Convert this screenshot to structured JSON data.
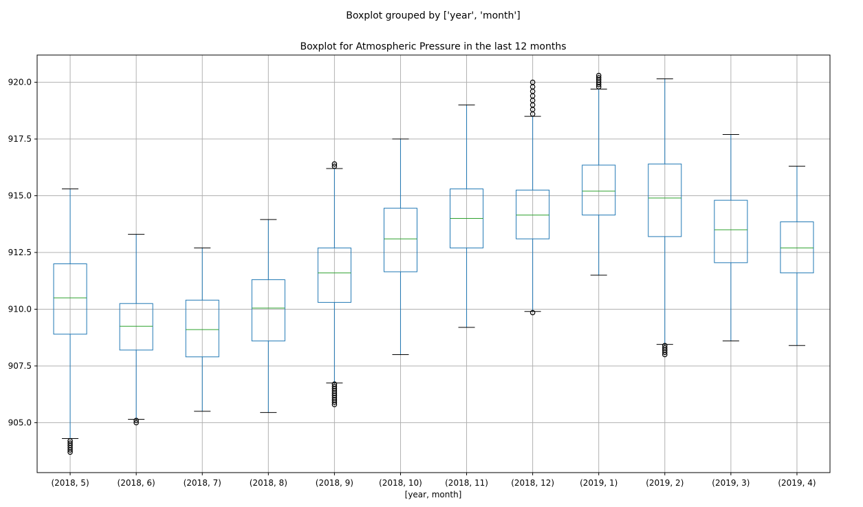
{
  "chart_data": {
    "type": "boxplot",
    "suptitle": "Boxplot grouped by ['year', 'month']",
    "title": "Boxplot for Atmospheric Pressure in the last 12 months",
    "xlabel": "[year, month]",
    "ylabel": "",
    "ylim": [
      902.8,
      921.2
    ],
    "yticks": [
      "905.0",
      "907.5",
      "910.0",
      "912.5",
      "915.0",
      "917.5",
      "920.0"
    ],
    "grid": true,
    "colors": {
      "box": "#1f77b4",
      "median": "#2ca02c",
      "grid": "#b0b0b0",
      "outlier": "#000000"
    },
    "categories": [
      "(2018, 5)",
      "(2018, 6)",
      "(2018, 7)",
      "(2018, 8)",
      "(2018, 9)",
      "(2018, 10)",
      "(2018, 11)",
      "(2018, 12)",
      "(2019, 1)",
      "(2019, 2)",
      "(2019, 3)",
      "(2019, 4)"
    ],
    "boxes": [
      {
        "whisker_low": 904.3,
        "q1": 908.9,
        "median": 910.5,
        "q3": 912.0,
        "whisker_high": 915.3,
        "outliers": [
          904.2,
          904.1,
          904.0,
          903.9,
          903.8,
          903.7
        ]
      },
      {
        "whisker_low": 905.15,
        "q1": 908.2,
        "median": 909.25,
        "q3": 910.25,
        "whisker_high": 913.3,
        "outliers": [
          905.1,
          905.0
        ]
      },
      {
        "whisker_low": 905.5,
        "q1": 907.9,
        "median": 909.1,
        "q3": 910.4,
        "whisker_high": 912.7,
        "outliers": []
      },
      {
        "whisker_low": 905.45,
        "q1": 908.6,
        "median": 910.05,
        "q3": 911.3,
        "whisker_high": 913.95,
        "outliers": []
      },
      {
        "whisker_low": 906.75,
        "q1": 910.3,
        "median": 911.6,
        "q3": 912.7,
        "whisker_high": 916.2,
        "outliers": [
          906.7,
          906.6,
          906.5,
          906.4,
          906.3,
          906.2,
          906.1,
          906.0,
          905.9,
          905.8,
          916.3,
          916.4
        ]
      },
      {
        "whisker_low": 908.0,
        "q1": 911.65,
        "median": 913.1,
        "q3": 914.45,
        "whisker_high": 917.5,
        "outliers": []
      },
      {
        "whisker_low": 909.2,
        "q1": 912.7,
        "median": 914.0,
        "q3": 915.3,
        "whisker_high": 919.0,
        "outliers": []
      },
      {
        "whisker_low": 909.9,
        "q1": 913.1,
        "median": 914.15,
        "q3": 915.25,
        "whisker_high": 918.5,
        "outliers": [
          909.85,
          918.6,
          918.8,
          919.0,
          919.2,
          919.4,
          919.6,
          919.8,
          920.0
        ]
      },
      {
        "whisker_low": 911.5,
        "q1": 914.15,
        "median": 915.2,
        "q3": 916.35,
        "whisker_high": 919.7,
        "outliers": [
          919.8,
          919.9,
          920.0,
          920.1,
          920.2,
          920.3
        ]
      },
      {
        "whisker_low": 908.45,
        "q1": 913.2,
        "median": 914.9,
        "q3": 916.4,
        "whisker_high": 920.15,
        "outliers": [
          908.4,
          908.3,
          908.2,
          908.1,
          908.0
        ]
      },
      {
        "whisker_low": 908.6,
        "q1": 912.05,
        "median": 913.5,
        "q3": 914.8,
        "whisker_high": 917.7,
        "outliers": []
      },
      {
        "whisker_low": 908.4,
        "q1": 911.6,
        "median": 912.7,
        "q3": 913.85,
        "whisker_high": 916.3,
        "outliers": []
      }
    ]
  }
}
